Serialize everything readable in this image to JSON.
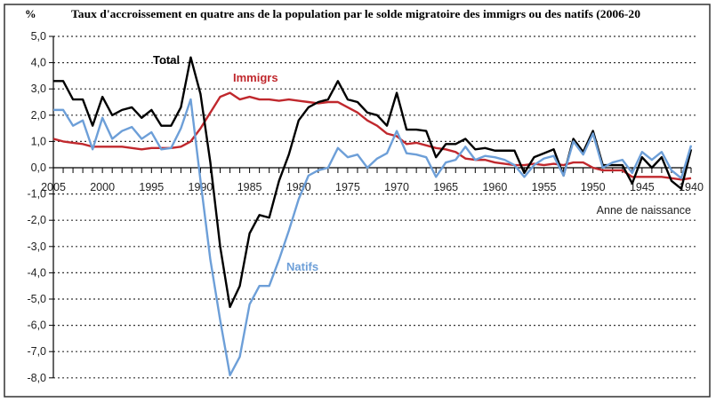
{
  "chart_data": {
    "type": "line",
    "title": "Taux d'accroissement en quatre ans de la population par le solde migratoire des immigrs ou des natifs (2006-20",
    "ylabel": "%",
    "xlabel": "Anne de naissance",
    "xlim": [
      2005,
      1940
    ],
    "ylim": [
      -8,
      5
    ],
    "grid": true,
    "legend": "inline labels",
    "y_ticks": [
      "5,0",
      "4,0",
      "3,0",
      "2,0",
      "1,0",
      "0,0",
      "-1,0",
      "-2,0",
      "-3,0",
      "-4,0",
      "-5,0",
      "-6,0",
      "-7,0",
      "-8,0"
    ],
    "x_ticks": [
      "2005",
      "2000",
      "1995",
      "1990",
      "1985",
      "1980",
      "1975",
      "1970",
      "1965",
      "1960",
      "1955",
      "1950",
      "1945",
      "1940"
    ],
    "x": [
      2005,
      2004,
      2003,
      2002,
      2001,
      2000,
      1999,
      1998,
      1997,
      1996,
      1995,
      1994,
      1993,
      1992,
      1991,
      1990,
      1989,
      1988,
      1987,
      1986,
      1985,
      1984,
      1983,
      1982,
      1981,
      1980,
      1979,
      1978,
      1977,
      1976,
      1975,
      1974,
      1973,
      1972,
      1971,
      1970,
      1969,
      1968,
      1967,
      1966,
      1965,
      1964,
      1963,
      1962,
      1961,
      1960,
      1959,
      1958,
      1957,
      1956,
      1955,
      1954,
      1953,
      1952,
      1951,
      1950,
      1949,
      1948,
      1947,
      1946,
      1945,
      1944,
      1943,
      1942,
      1941,
      1940
    ],
    "series": [
      {
        "name": "Total",
        "color": "#000000",
        "values": [
          3.3,
          3.3,
          2.6,
          2.6,
          1.6,
          2.7,
          2.0,
          2.2,
          2.3,
          1.9,
          2.2,
          1.6,
          1.6,
          2.3,
          4.2,
          2.8,
          0.2,
          -3.0,
          -5.3,
          -4.5,
          -2.5,
          -1.8,
          -1.9,
          -0.5,
          0.5,
          1.8,
          2.3,
          2.5,
          2.6,
          3.3,
          2.6,
          2.5,
          2.1,
          2.0,
          1.6,
          2.85,
          1.45,
          1.45,
          1.4,
          0.4,
          0.9,
          0.9,
          1.1,
          0.7,
          0.75,
          0.65,
          0.65,
          0.65,
          -0.2,
          0.4,
          0.55,
          0.7,
          -0.3,
          1.1,
          0.6,
          1.4,
          0.1,
          0.1,
          0.1,
          -0.6,
          0.4,
          0.0,
          0.4,
          -0.5,
          -0.8,
          0.7
        ]
      },
      {
        "name": "Immigrs",
        "color": "#c0282d",
        "values": [
          1.1,
          1.0,
          0.95,
          0.9,
          0.8,
          0.8,
          0.8,
          0.8,
          0.75,
          0.7,
          0.75,
          0.75,
          0.75,
          0.8,
          1.0,
          1.5,
          2.1,
          2.7,
          2.85,
          2.6,
          2.7,
          2.6,
          2.6,
          2.55,
          2.6,
          2.55,
          2.5,
          2.45,
          2.5,
          2.5,
          2.3,
          2.1,
          1.8,
          1.6,
          1.3,
          1.2,
          0.9,
          0.95,
          0.85,
          0.75,
          0.7,
          0.6,
          0.35,
          0.3,
          0.3,
          0.2,
          0.15,
          0.1,
          0.1,
          0.15,
          0.1,
          0.15,
          0.1,
          0.2,
          0.2,
          0.0,
          -0.1,
          -0.1,
          -0.1,
          -0.35,
          -0.35,
          -0.35,
          -0.35,
          -0.4,
          -0.45,
          -0.4
        ]
      },
      {
        "name": "Natifs",
        "color": "#6d9fd8",
        "values": [
          2.2,
          2.2,
          1.6,
          1.8,
          0.7,
          1.9,
          1.1,
          1.4,
          1.55,
          1.1,
          1.35,
          0.7,
          0.75,
          1.5,
          2.6,
          -0.5,
          -3.5,
          -5.8,
          -7.9,
          -7.2,
          -5.2,
          -4.5,
          -4.5,
          -3.5,
          -2.4,
          -1.2,
          -0.3,
          -0.1,
          0.0,
          0.75,
          0.4,
          0.5,
          0.0,
          0.35,
          0.55,
          1.4,
          0.55,
          0.5,
          0.4,
          -0.35,
          0.2,
          0.3,
          0.8,
          0.3,
          0.45,
          0.4,
          0.3,
          0.1,
          -0.35,
          0.1,
          0.35,
          0.45,
          -0.3,
          1.0,
          0.5,
          1.3,
          0.0,
          0.2,
          0.3,
          -0.2,
          0.6,
          0.3,
          0.6,
          -0.1,
          -0.4,
          0.85
        ]
      }
    ]
  }
}
